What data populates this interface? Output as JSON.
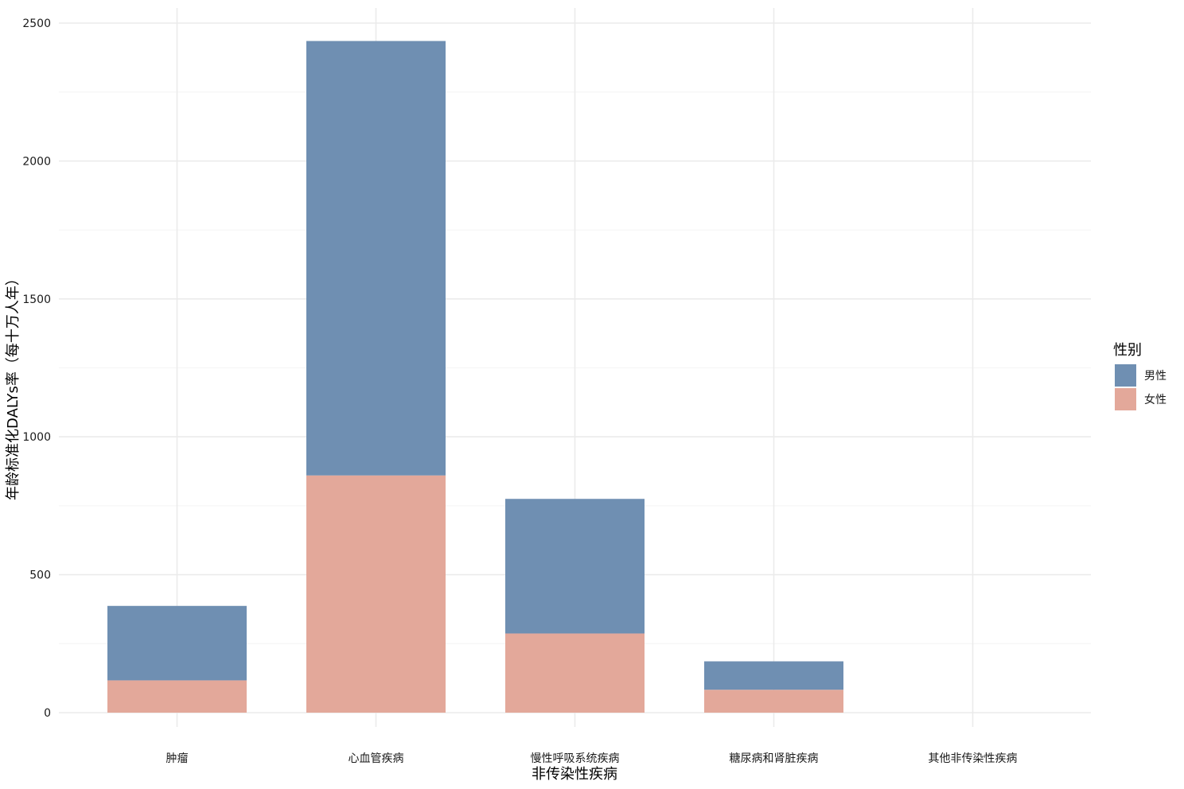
{
  "chart_data": {
    "type": "bar",
    "stacked": true,
    "categories": [
      "肿瘤",
      "心血管疾病",
      "慢性呼吸系统疾病",
      "糖尿病和肾脏疾病",
      "其他非传染性疾病"
    ],
    "series": [
      {
        "name": "男性",
        "values": [
          270,
          1575,
          488,
          103,
          0
        ]
      },
      {
        "name": "女性",
        "values": [
          117,
          860,
          287,
          83,
          0
        ]
      }
    ],
    "series_colors": {
      "男性": "#6f8fb2",
      "女性": "#e3a89a"
    },
    "xlabel": "非传染性疾病",
    "ylabel": "年龄标准化DALYs率（每十万人年）",
    "ylim": [
      0,
      2500
    ],
    "yticks": [
      0,
      500,
      1000,
      1500,
      2000,
      2500
    ],
    "grid": true,
    "legend": {
      "title": "性别",
      "position": "right"
    }
  }
}
